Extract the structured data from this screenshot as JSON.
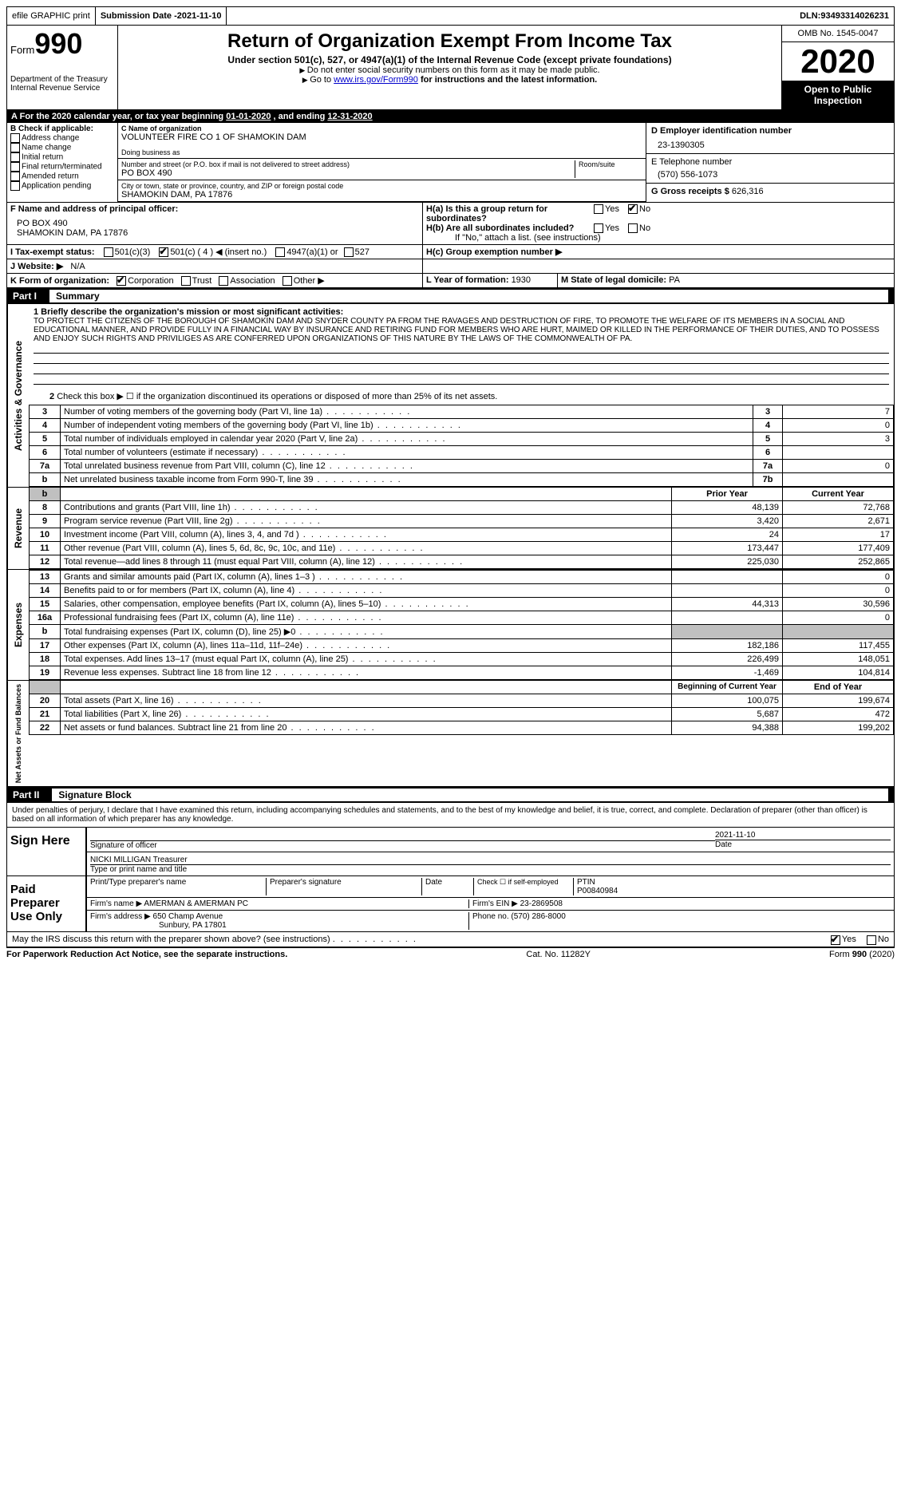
{
  "top": {
    "efile": "efile GRAPHIC print",
    "submission_label": "Submission Date - ",
    "submission_date": "2021-11-10",
    "dln_label": "DLN: ",
    "dln": "93493314026231"
  },
  "header": {
    "form_word": "Form",
    "form_num": "990",
    "dept1": "Department of the Treasury",
    "dept2": "Internal Revenue Service",
    "title": "Return of Organization Exempt From Income Tax",
    "subtitle": "Under section 501(c), 527, or 4947(a)(1) of the Internal Revenue Code (except private foundations)",
    "note1": "Do not enter social security numbers on this form as it may be made public.",
    "note2_pre": "Go to ",
    "note2_link": "www.irs.gov/Form990",
    "note2_post": " for instructions and the latest information.",
    "omb": "OMB No. 1545-0047",
    "year": "2020",
    "open": "Open to Public Inspection"
  },
  "period": {
    "text_a": "For the 2020 calendar year, or tax year beginning ",
    "begin": "01-01-2020",
    "text_b": " , and ending ",
    "end": "12-31-2020"
  },
  "box_b": {
    "label": "B Check if applicable:",
    "items": [
      "Address change",
      "Name change",
      "Initial return",
      "Final return/terminated",
      "Amended return",
      "Application pending"
    ]
  },
  "box_c": {
    "name_label": "C Name of organization",
    "name": "VOLUNTEER FIRE CO 1 OF SHAMOKIN DAM",
    "dba_label": "Doing business as",
    "street_label": "Number and street (or P.O. box if mail is not delivered to street address)",
    "room_label": "Room/suite",
    "street": "PO BOX 490",
    "city_label": "City or town, state or province, country, and ZIP or foreign postal code",
    "city": "SHAMOKIN DAM, PA  17876"
  },
  "box_d": {
    "label": "D Employer identification number",
    "value": "23-1390305"
  },
  "box_e": {
    "label": "E Telephone number",
    "value": "(570) 556-1073"
  },
  "box_g": {
    "label": "G Gross receipts $ ",
    "value": "626,316"
  },
  "box_f": {
    "label": "F  Name and address of principal officer:",
    "line1": "PO BOX 490",
    "line2": "SHAMOKIN DAM, PA  17876"
  },
  "box_h": {
    "a_label": "H(a)  Is this a group return for subordinates?",
    "b_label": "H(b)  Are all subordinates included?",
    "if_no": "If \"No,\" attach a list. (see instructions)",
    "c_label": "H(c)  Group exemption number ▶",
    "yes": "Yes",
    "no": "No"
  },
  "box_i": {
    "label": "I    Tax-exempt status:",
    "o1": "501(c)(3)",
    "o2": "501(c) ( 4 ) ◀ (insert no.)",
    "o3": "4947(a)(1) or",
    "o4": "527"
  },
  "box_j": {
    "label": "J   Website: ▶",
    "value": "N/A"
  },
  "box_k": {
    "label": "K Form of organization:",
    "o1": "Corporation",
    "o2": "Trust",
    "o3": "Association",
    "o4": "Other ▶"
  },
  "box_l": {
    "label": "L Year of formation: ",
    "value": "1930"
  },
  "box_m": {
    "label": "M State of legal domicile: ",
    "value": "PA"
  },
  "part1": {
    "label": "Part I",
    "title": "Summary",
    "line1_label": "1   Briefly describe the organization's mission or most significant activities:",
    "mission": "TO PROTECT THE CITIZENS OF THE BOROUGH OF SHAMOKIN DAM AND SNYDER COUNTY PA FROM THE RAVAGES AND DESTRUCTION OF FIRE, TO PROMOTE THE WELFARE OF ITS MEMBERS IN A SOCIAL AND EDUCATIONAL MANNER, AND PROVIDE FULLY IN A FINANCIAL WAY BY INSURANCE AND RETIRING FUND FOR MEMBERS WHO ARE HURT, MAIMED OR KILLED IN THE PERFORMANCE OF THEIR DUTIES, AND TO POSSESS AND ENJOY SUCH RIGHTS AND PRIVILIGES AS ARE CONFERRED UPON ORGANIZATIONS OF THIS NATURE BY THE LAWS OF THE COMMONWEALTH OF PA.",
    "line2": "Check this box ▶ ☐  if the organization discontinued its operations or disposed of more than 25% of its net assets.",
    "vert_ag": "Activities & Governance",
    "vert_rev": "Revenue",
    "vert_exp": "Expenses",
    "vert_na": "Net Assets or Fund Balances",
    "hdr_prior": "Prior Year",
    "hdr_current": "Current Year",
    "hdr_boy": "Beginning of Current Year",
    "hdr_eoy": "End of Year",
    "lines_single": [
      {
        "n": "3",
        "t": "Number of voting members of the governing body (Part VI, line 1a)",
        "box": "3",
        "v": "7"
      },
      {
        "n": "4",
        "t": "Number of independent voting members of the governing body (Part VI, line 1b)",
        "box": "4",
        "v": "0"
      },
      {
        "n": "5",
        "t": "Total number of individuals employed in calendar year 2020 (Part V, line 2a)",
        "box": "5",
        "v": "3"
      },
      {
        "n": "6",
        "t": "Total number of volunteers (estimate if necessary)",
        "box": "6",
        "v": ""
      },
      {
        "n": "7a",
        "t": "Total unrelated business revenue from Part VIII, column (C), line 12",
        "box": "7a",
        "v": "0"
      },
      {
        "n": "b",
        "t": "Net unrelated business taxable income from Form 990-T, line 39",
        "box": "7b",
        "v": ""
      }
    ],
    "lines_rev": [
      {
        "n": "8",
        "t": "Contributions and grants (Part VIII, line 1h)",
        "p": "48,139",
        "c": "72,768"
      },
      {
        "n": "9",
        "t": "Program service revenue (Part VIII, line 2g)",
        "p": "3,420",
        "c": "2,671"
      },
      {
        "n": "10",
        "t": "Investment income (Part VIII, column (A), lines 3, 4, and 7d )",
        "p": "24",
        "c": "17"
      },
      {
        "n": "11",
        "t": "Other revenue (Part VIII, column (A), lines 5, 6d, 8c, 9c, 10c, and 11e)",
        "p": "173,447",
        "c": "177,409"
      },
      {
        "n": "12",
        "t": "Total revenue—add lines 8 through 11 (must equal Part VIII, column (A), line 12)",
        "p": "225,030",
        "c": "252,865"
      }
    ],
    "lines_exp": [
      {
        "n": "13",
        "t": "Grants and similar amounts paid (Part IX, column (A), lines 1–3 )",
        "p": "",
        "c": "0"
      },
      {
        "n": "14",
        "t": "Benefits paid to or for members (Part IX, column (A), line 4)",
        "p": "",
        "c": "0"
      },
      {
        "n": "15",
        "t": "Salaries, other compensation, employee benefits (Part IX, column (A), lines 5–10)",
        "p": "44,313",
        "c": "30,596"
      },
      {
        "n": "16a",
        "t": "Professional fundraising fees (Part IX, column (A), line 11e)",
        "p": "",
        "c": "0"
      },
      {
        "n": "b",
        "t": "Total fundraising expenses (Part IX, column (D), line 25) ▶0",
        "p": "SHADE",
        "c": "SHADE"
      },
      {
        "n": "17",
        "t": "Other expenses (Part IX, column (A), lines 11a–11d, 11f–24e)",
        "p": "182,186",
        "c": "117,455"
      },
      {
        "n": "18",
        "t": "Total expenses. Add lines 13–17 (must equal Part IX, column (A), line 25)",
        "p": "226,499",
        "c": "148,051"
      },
      {
        "n": "19",
        "t": "Revenue less expenses. Subtract line 18 from line 12",
        "p": "-1,469",
        "c": "104,814"
      }
    ],
    "lines_na": [
      {
        "n": "20",
        "t": "Total assets (Part X, line 16)",
        "p": "100,075",
        "c": "199,674"
      },
      {
        "n": "21",
        "t": "Total liabilities (Part X, line 26)",
        "p": "5,687",
        "c": "472"
      },
      {
        "n": "22",
        "t": "Net assets or fund balances. Subtract line 21 from line 20",
        "p": "94,388",
        "c": "199,202"
      }
    ]
  },
  "part2": {
    "label": "Part II",
    "title": "Signature Block",
    "declaration": "Under penalties of perjury, I declare that I have examined this return, including accompanying schedules and statements, and to the best of my knowledge and belief, it is true, correct, and complete. Declaration of preparer (other than officer) is based on all information of which preparer has any knowledge.",
    "sign_here": "Sign Here",
    "sig_officer": "Signature of officer",
    "sig_date": "2021-11-10",
    "date_label": "Date",
    "officer_name": "NICKI MILLIGAN  Treasurer",
    "type_name": "Type or print name and title",
    "paid_label": "Paid Preparer Use Only",
    "prep_name_label": "Print/Type preparer's name",
    "prep_sig_label": "Preparer's signature",
    "check_label": "Check ☐ if self-employed",
    "ptin_label": "PTIN",
    "ptin": "P00840984",
    "firm_name_label": "Firm's name    ▶ ",
    "firm_name": "AMERMAN & AMERMAN PC",
    "firm_ein_label": "Firm's EIN ▶ ",
    "firm_ein": "23-2869508",
    "firm_addr_label": "Firm's address ▶ ",
    "firm_addr1": "650 Champ Avenue",
    "firm_addr2": "Sunbury, PA  17801",
    "phone_label": "Phone no. ",
    "phone": "(570) 286-8000",
    "may_irs": "May the IRS discuss this return with the preparer shown above? (see instructions)",
    "yes": "Yes",
    "no": "No"
  },
  "footer": {
    "left": "For Paperwork Reduction Act Notice, see the separate instructions.",
    "center": "Cat. No. 11282Y",
    "right": "Form 990 (2020)"
  }
}
